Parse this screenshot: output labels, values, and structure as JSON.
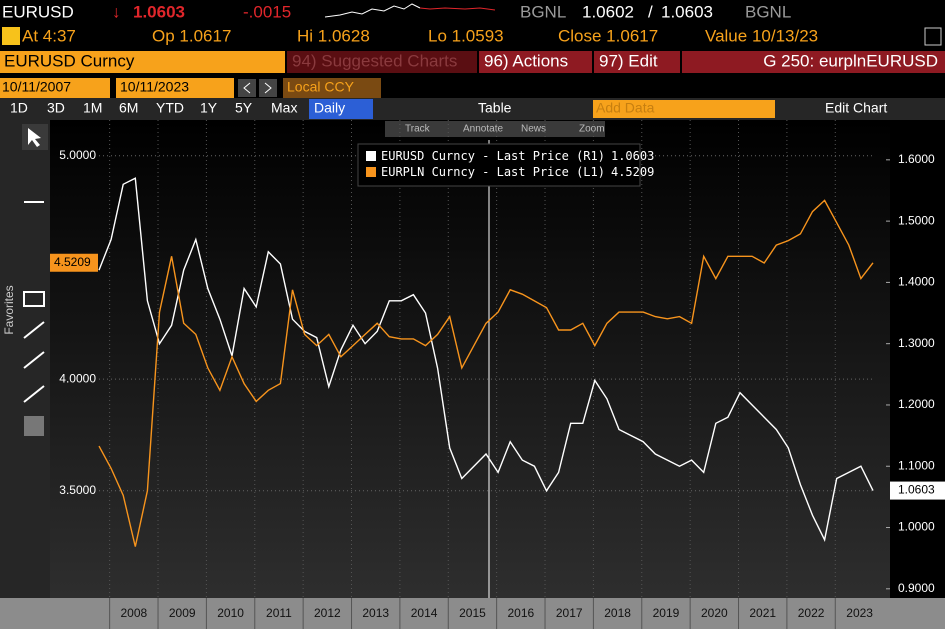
{
  "header": {
    "security": "EURUSD",
    "direction": "↓",
    "last": "1.0603",
    "change": "-.0015",
    "source": "BGNL",
    "bid": "1.0602",
    "separator": "/",
    "ask": "1.0603",
    "source2": "BGNL"
  },
  "quote": {
    "time": "At 4:37",
    "open": "Op 1.0617",
    "high": "Hi 1.0628",
    "low": "Lo 1.0593",
    "close": "Close 1.0617",
    "value": "Value 10/13/23"
  },
  "menu": {
    "ticker": "EURUSD Curncy",
    "suggested": "94) Suggested Charts",
    "actions": "96) Actions",
    "edit": "97) Edit",
    "function": "G 250: eurplnEURUSD"
  },
  "range": {
    "start": "10/11/2007",
    "end": "10/11/2023",
    "currency": "Local CCY"
  },
  "toolbar": {
    "periods": [
      "1D",
      "3D",
      "1M",
      "6M",
      "YTD",
      "1Y",
      "5Y",
      "Max"
    ],
    "frequency": "Daily",
    "table": "Table",
    "add_data": "Add Data",
    "edit_chart": "Edit Chart"
  },
  "chart_tools": [
    "Track",
    "Annotate",
    "News",
    "Zoom"
  ],
  "sidebar": "Favorites",
  "chart_data": {
    "type": "line",
    "grid": true,
    "xlim": [
      2007.78,
      2023.78
    ],
    "xticks": [
      2008,
      2009,
      2010,
      2011,
      2012,
      2013,
      2014,
      2015,
      2016,
      2017,
      2018,
      2019,
      2020,
      2021,
      2022,
      2023
    ],
    "ylim": [
      3.02,
      5.16
    ],
    "yticks": [
      {
        "value": 5,
        "label": "5.0000"
      },
      {
        "value": 4,
        "label": "4.0000"
      },
      {
        "value": 3.5,
        "label": "3.5000"
      }
    ],
    "y2lim": [
      0.885,
      1.665
    ],
    "y2ticks": [
      {
        "value": 0.9,
        "label": "0.9000"
      },
      {
        "value": 1,
        "label": "1.0000"
      },
      {
        "value": 1.1,
        "label": "1.1000"
      },
      {
        "value": 1.2,
        "label": "1.2000"
      },
      {
        "value": 1.3,
        "label": "1.3000"
      },
      {
        "value": 1.4,
        "label": "1.4000"
      },
      {
        "value": 1.5,
        "label": "1.5000"
      },
      {
        "value": 1.6,
        "label": "1.6000"
      }
    ],
    "x": [
      2007.78,
      2008.03,
      2008.28,
      2008.53,
      2008.78,
      2009.03,
      2009.28,
      2009.53,
      2009.78,
      2010.03,
      2010.28,
      2010.53,
      2010.78,
      2011.03,
      2011.28,
      2011.53,
      2011.78,
      2012.03,
      2012.28,
      2012.53,
      2012.78,
      2013.03,
      2013.28,
      2013.53,
      2013.78,
      2014.03,
      2014.28,
      2014.53,
      2014.78,
      2015.03,
      2015.28,
      2015.53,
      2015.78,
      2016.03,
      2016.28,
      2016.53,
      2016.78,
      2017.03,
      2017.28,
      2017.53,
      2017.78,
      2018.03,
      2018.28,
      2018.53,
      2018.78,
      2019.03,
      2019.28,
      2019.53,
      2019.78,
      2020.03,
      2020.28,
      2020.53,
      2020.78,
      2021.03,
      2021.28,
      2021.53,
      2021.78,
      2022.03,
      2022.28,
      2022.53,
      2022.78,
      2023.03,
      2023.28,
      2023.53,
      2023.78
    ],
    "series": [
      {
        "name": "EURUSD Curncy - Last Price (R1)",
        "color": "#ffffff",
        "axis": "y2",
        "values": [
          1.42,
          1.47,
          1.56,
          1.57,
          1.37,
          1.3,
          1.33,
          1.42,
          1.47,
          1.39,
          1.34,
          1.28,
          1.39,
          1.36,
          1.45,
          1.43,
          1.34,
          1.32,
          1.31,
          1.23,
          1.29,
          1.33,
          1.3,
          1.32,
          1.37,
          1.37,
          1.38,
          1.35,
          1.26,
          1.13,
          1.08,
          1.1,
          1.12,
          1.09,
          1.14,
          1.11,
          1.1,
          1.06,
          1.09,
          1.17,
          1.17,
          1.24,
          1.21,
          1.16,
          1.15,
          1.14,
          1.12,
          1.11,
          1.1,
          1.11,
          1.09,
          1.17,
          1.18,
          1.22,
          1.2,
          1.18,
          1.16,
          1.13,
          1.07,
          1.02,
          0.98,
          1.08,
          1.09,
          1.1,
          1.0603
        ]
      },
      {
        "name": "EURPLN Curncy - Last Price (L1)",
        "color": "#f7941d",
        "values": [
          3.7,
          3.6,
          3.48,
          3.25,
          3.5,
          4.3,
          4.55,
          4.25,
          4.2,
          4.05,
          3.95,
          4.1,
          3.98,
          3.9,
          3.95,
          3.98,
          4.4,
          4.2,
          4.15,
          4.2,
          4.1,
          4.15,
          4.2,
          4.25,
          4.19,
          4.18,
          4.18,
          4.15,
          4.2,
          4.28,
          4.05,
          4.15,
          4.25,
          4.3,
          4.4,
          4.38,
          4.35,
          4.32,
          4.22,
          4.22,
          4.25,
          4.15,
          4.25,
          4.3,
          4.3,
          4.3,
          4.28,
          4.27,
          4.28,
          4.25,
          4.55,
          4.45,
          4.55,
          4.55,
          4.55,
          4.52,
          4.6,
          4.62,
          4.65,
          4.75,
          4.8,
          4.7,
          4.6,
          4.45,
          4.5209
        ]
      }
    ]
  }
}
